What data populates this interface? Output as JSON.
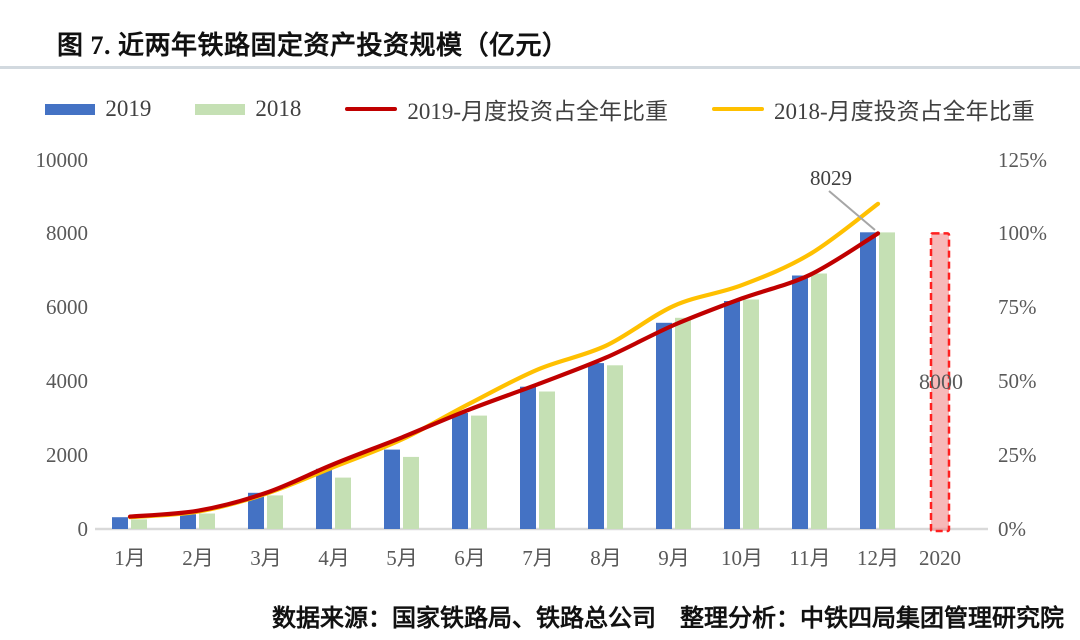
{
  "page": {
    "title": "图 7. 近两年铁路固定资产投资规模（亿元）",
    "footer": "数据来源：国家铁路局、铁路总公司　整理分析：中铁四局集团管理研究院"
  },
  "chart_data": {
    "type": "bar",
    "subtype": "combo-bar-line-dual-axis",
    "title": "图 7. 近两年铁路固定资产投资规模（亿元）",
    "x_categories": [
      "1月",
      "2月",
      "3月",
      "4月",
      "5月",
      "6月",
      "7月",
      "8月",
      "9月",
      "10月",
      "11月",
      "12月",
      "2020"
    ],
    "left_axis": {
      "ticks": [
        "0",
        "2000",
        "4000",
        "6000",
        "8000",
        "10000"
      ],
      "min": 0,
      "max": 10000
    },
    "right_axis": {
      "ticks": [
        "0%",
        "25%",
        "50%",
        "75%",
        "100%",
        "125%"
      ],
      "min": 0,
      "max": 125
    },
    "grid": "off",
    "legend_position": "top",
    "series": [
      {
        "name": "2019",
        "kind": "bar",
        "axis": "left",
        "color": "#4472C4",
        "values": [
          320,
          400,
          980,
          1630,
          2150,
          3140,
          3850,
          4490,
          5580,
          6170,
          6860,
          8029
        ]
      },
      {
        "name": "2018",
        "kind": "bar",
        "axis": "left",
        "color": "#C5E0B4",
        "values": [
          260,
          420,
          910,
          1390,
          1950,
          3070,
          3720,
          4430,
          5715,
          6210,
          6915,
          8028
        ]
      },
      {
        "name": "2019-月度投资占全年比重",
        "kind": "line",
        "axis": "right",
        "color": "#C00000",
        "values_pct": [
          4.2,
          6.2,
          12.2,
          22,
          31,
          40.5,
          49,
          58,
          69,
          78,
          86,
          100
        ]
      },
      {
        "name": "2018-月度投资占全年比重",
        "kind": "line",
        "axis": "right",
        "color": "#FFC000",
        "values_pct": [
          4.0,
          5.9,
          11.9,
          21,
          30.3,
          42.5,
          54,
          62,
          75.5,
          82.5,
          93,
          110
        ]
      }
    ],
    "plan_bar_2020": {
      "category": "2020",
      "value": 8000,
      "label": "8000",
      "fill": "#F08080",
      "border": "#FF2020"
    },
    "peak_annotation": {
      "text": "8029",
      "category": "12月",
      "value": 8029,
      "leader_color": "#A6A6A6"
    },
    "colors": {
      "axis_line": "#D9D9D9",
      "axis_text": "#595959",
      "legend_text": "#404040",
      "divider": "#D2D9DF"
    }
  }
}
